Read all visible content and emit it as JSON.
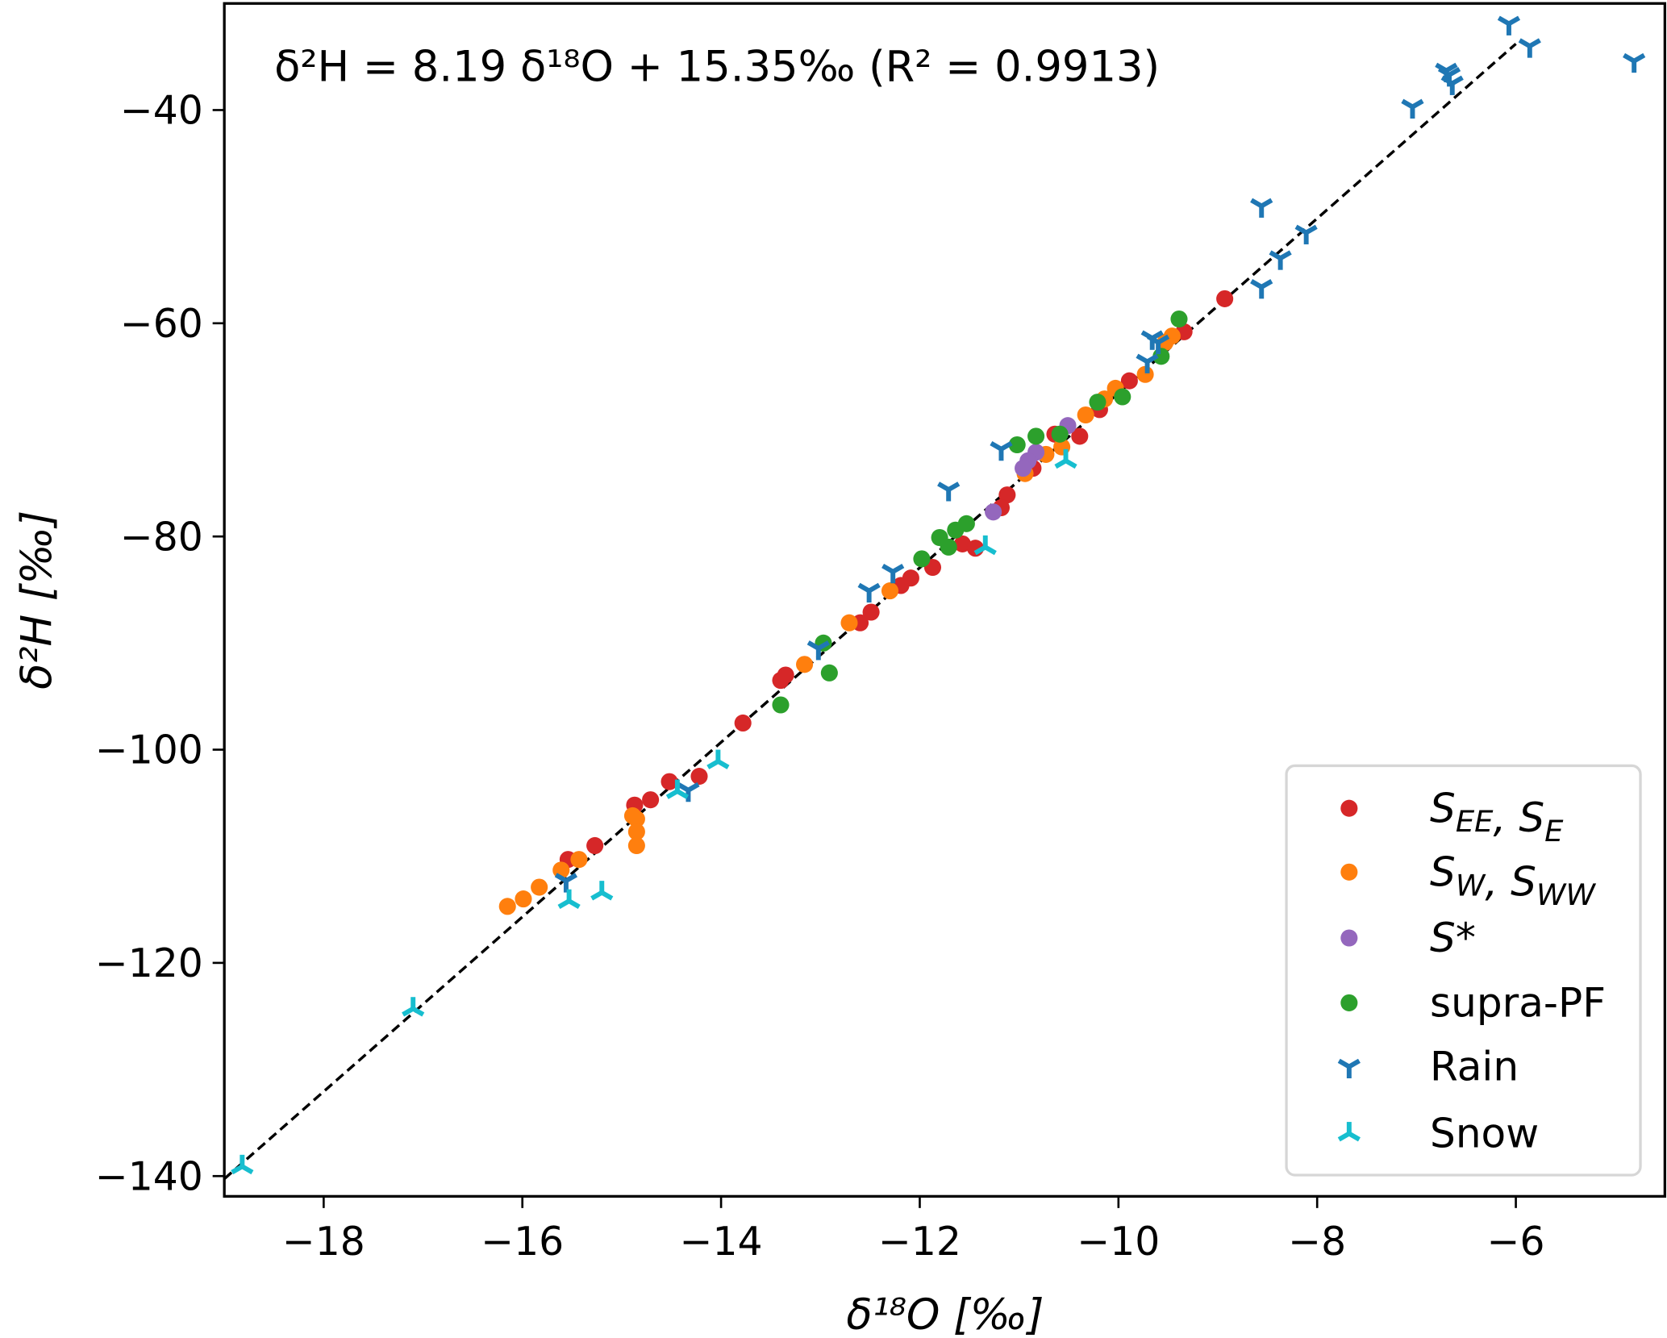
{
  "chart_data": {
    "type": "scatter",
    "xlabel": "δ¹⁸O [‰]",
    "ylabel": "δ²H [‰]",
    "xlim": [
      -19.0,
      -4.5
    ],
    "ylim": [
      -141.9,
      -30.0
    ],
    "xticks": [
      -18,
      -16,
      -14,
      -12,
      -10,
      -8,
      -6
    ],
    "yticks": [
      -40,
      -60,
      -80,
      -100,
      -120,
      -140
    ],
    "tick_labels_x": [
      "−18",
      "−16",
      "−14",
      "−12",
      "−10",
      "−8",
      "−6"
    ],
    "tick_labels_y": [
      "−40",
      "−60",
      "−80",
      "−100",
      "−120",
      "−140"
    ],
    "grid": false,
    "legend_placement": "lower-right",
    "annotation": "δ²H = 8.19 δ¹⁸O + 15.35‰ (R² = 0.9913)",
    "fit_line": {
      "slope": 8.19,
      "intercept": 15.35,
      "r2": 0.9913,
      "style": "dashed",
      "color": "#000000"
    },
    "series": [
      {
        "name": "SEE, SE",
        "label_parts": [
          [
            "S",
            ""
          ],
          [
            "EE",
            "sub"
          ],
          [
            ", ",
            ""
          ],
          [
            "S",
            ""
          ],
          [
            "E",
            "sub"
          ]
        ],
        "marker": "circle",
        "color": "#d62728",
        "points": [
          [
            -8.93,
            -57.7
          ],
          [
            -9.34,
            -60.8
          ],
          [
            -9.89,
            -65.4
          ],
          [
            -10.39,
            -70.6
          ],
          [
            -10.64,
            -70.4
          ],
          [
            -10.19,
            -68.1
          ],
          [
            -10.86,
            -73.6
          ],
          [
            -11.12,
            -76.1
          ],
          [
            -11.18,
            -77.3
          ],
          [
            -11.57,
            -80.7
          ],
          [
            -11.44,
            -81.1
          ],
          [
            -11.87,
            -82.9
          ],
          [
            -12.09,
            -83.9
          ],
          [
            -12.19,
            -84.6
          ],
          [
            -12.49,
            -87.1
          ],
          [
            -12.6,
            -88.1
          ],
          [
            -13.35,
            -93.0
          ],
          [
            -13.4,
            -93.5
          ],
          [
            -13.78,
            -97.5
          ],
          [
            -14.22,
            -102.5
          ],
          [
            -14.52,
            -103.0
          ],
          [
            -14.71,
            -104.7
          ],
          [
            -14.87,
            -105.2
          ],
          [
            -15.27,
            -109.0
          ],
          [
            -15.54,
            -110.3
          ]
        ]
      },
      {
        "name": "SW, SWW",
        "label_parts": [
          [
            "S",
            ""
          ],
          [
            "W",
            "sub"
          ],
          [
            ", ",
            ""
          ],
          [
            "S",
            ""
          ],
          [
            "WW",
            "sub"
          ]
        ],
        "marker": "circle",
        "color": "#ff7f0e",
        "points": [
          [
            -9.46,
            -61.2
          ],
          [
            -9.53,
            -61.8
          ],
          [
            -9.73,
            -64.8
          ],
          [
            -10.03,
            -66.1
          ],
          [
            -10.14,
            -67.1
          ],
          [
            -10.33,
            -68.6
          ],
          [
            -10.57,
            -71.6
          ],
          [
            -10.73,
            -72.3
          ],
          [
            -10.94,
            -74.1
          ],
          [
            -12.3,
            -85.1
          ],
          [
            -12.71,
            -88.1
          ],
          [
            -13.16,
            -92.0
          ],
          [
            -14.85,
            -106.5
          ],
          [
            -14.85,
            -107.7
          ],
          [
            -14.85,
            -109.0
          ],
          [
            -14.89,
            -106.2
          ],
          [
            -15.43,
            -110.3
          ],
          [
            -15.61,
            -111.3
          ],
          [
            -15.83,
            -112.9
          ],
          [
            -15.99,
            -114.0
          ],
          [
            -16.15,
            -114.7
          ]
        ]
      },
      {
        "name": "S*",
        "label_parts": [
          [
            "S*",
            ""
          ]
        ],
        "marker": "circle",
        "color": "#9467bd",
        "points": [
          [
            -10.51,
            -69.6
          ],
          [
            -10.83,
            -72.1
          ],
          [
            -10.91,
            -72.9
          ],
          [
            -10.96,
            -73.6
          ],
          [
            -11.26,
            -77.7
          ]
        ]
      },
      {
        "name": "supra-PF",
        "label_parts": [
          [
            "supra-PF",
            "plain"
          ]
        ],
        "marker": "circle",
        "color": "#2ca02c",
        "points": [
          [
            -9.39,
            -59.6
          ],
          [
            -9.57,
            -63.1
          ],
          [
            -9.96,
            -66.9
          ],
          [
            -10.21,
            -67.4
          ],
          [
            -10.59,
            -70.4
          ],
          [
            -10.83,
            -70.6
          ],
          [
            -11.02,
            -71.4
          ],
          [
            -11.53,
            -78.8
          ],
          [
            -11.64,
            -79.4
          ],
          [
            -11.8,
            -80.1
          ],
          [
            -11.71,
            -81.0
          ],
          [
            -11.98,
            -82.1
          ],
          [
            -12.97,
            -90.0
          ],
          [
            -12.91,
            -92.8
          ],
          [
            -13.4,
            -95.8
          ]
        ]
      },
      {
        "name": "Rain",
        "label_parts": [
          [
            "Rain",
            "plain"
          ]
        ],
        "marker": "tri_down",
        "color": "#1f77b4",
        "points": [
          [
            -6.07,
            -31.9
          ],
          [
            -5.86,
            -34.0
          ],
          [
            -4.81,
            -35.4
          ],
          [
            -6.7,
            -36.3
          ],
          [
            -6.67,
            -36.7
          ],
          [
            -6.64,
            -37.5
          ],
          [
            -7.04,
            -39.7
          ],
          [
            -8.56,
            -49.0
          ],
          [
            -8.11,
            -51.5
          ],
          [
            -8.37,
            -53.9
          ],
          [
            -8.56,
            -56.6
          ],
          [
            -9.66,
            -61.4
          ],
          [
            -9.6,
            -61.8
          ],
          [
            -9.71,
            -63.6
          ],
          [
            -11.18,
            -71.8
          ],
          [
            -11.71,
            -75.6
          ],
          [
            -12.27,
            -83.3
          ],
          [
            -12.51,
            -85.1
          ],
          [
            -13.02,
            -90.5
          ],
          [
            -14.33,
            -103.8
          ],
          [
            -15.56,
            -112.3
          ]
        ]
      },
      {
        "name": "Snow",
        "label_parts": [
          [
            "Snow",
            "plain"
          ]
        ],
        "marker": "tri_up",
        "color": "#17becf",
        "points": [
          [
            -18.82,
            -139.1
          ],
          [
            -17.1,
            -124.3
          ],
          [
            -15.53,
            -114.2
          ],
          [
            -15.2,
            -113.4
          ],
          [
            -14.44,
            -103.9
          ],
          [
            -14.03,
            -101.1
          ],
          [
            -11.34,
            -81.0
          ],
          [
            -10.53,
            -72.9
          ]
        ]
      }
    ]
  }
}
